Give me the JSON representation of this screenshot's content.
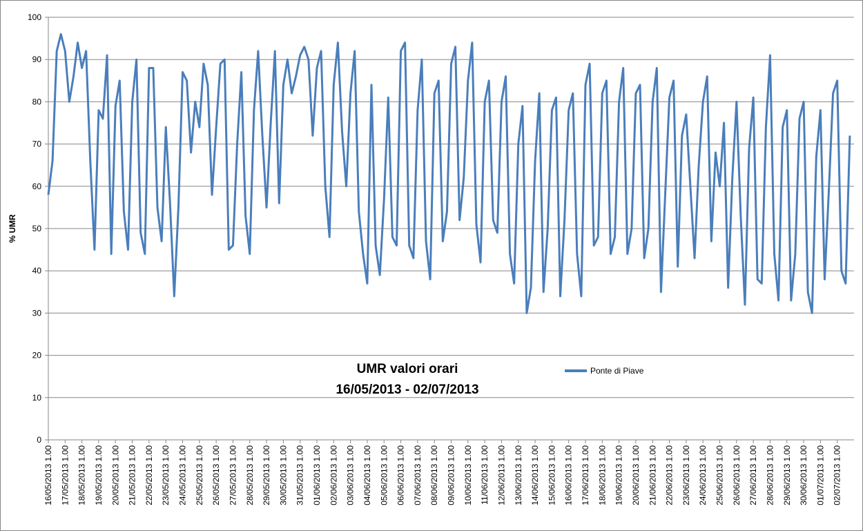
{
  "chart_data": {
    "type": "line",
    "title": "UMR valori orari",
    "subtitle": "16/05/2013 - 02/07/2013",
    "y_label": "% UMR",
    "categories": [
      "16/05/2013 1.00",
      null,
      null,
      null,
      "17/05/2013 1.00",
      null,
      null,
      null,
      "18/05/2013 1.00",
      null,
      null,
      null,
      "19/05/2013 1.00",
      null,
      null,
      null,
      "20/05/2013 1.00",
      null,
      null,
      null,
      "21/05/2013 1.00",
      null,
      null,
      null,
      "22/05/2013 1.00",
      null,
      null,
      null,
      "23/05/2013 1.00",
      null,
      null,
      null,
      "24/05/2013 1.00",
      null,
      null,
      null,
      "25/05/2013 1.00",
      null,
      null,
      null,
      "26/05/2013 1.00",
      null,
      null,
      null,
      "27/05/2013 1.00",
      null,
      null,
      null,
      "28/05/2013 1.00",
      null,
      null,
      null,
      "29/05/2013 1.00",
      null,
      null,
      null,
      "30/05/2013 1.00",
      null,
      null,
      null,
      "31/05/2013 1.00",
      null,
      null,
      null,
      "01/06/2013 1.00",
      null,
      null,
      null,
      "02/06/2013 1.00",
      null,
      null,
      null,
      "03/06/2013 1.00",
      null,
      null,
      null,
      "04/06/2013 1.00",
      null,
      null,
      null,
      "05/06/2013 1.00",
      null,
      null,
      null,
      "06/06/2013 1.00",
      null,
      null,
      null,
      "07/06/2013 1.00",
      null,
      null,
      null,
      "08/06/2013 1.00",
      null,
      null,
      null,
      "09/06/2013 1.00",
      null,
      null,
      null,
      "10/06/2013 1.00",
      null,
      null,
      null,
      "11/06/2013 1.00",
      null,
      null,
      null,
      "12/06/2013 1.00",
      null,
      null,
      null,
      "13/06/2013 1.00",
      null,
      null,
      null,
      "14/06/2013 1.00",
      null,
      null,
      null,
      "15/06/2013 1.00",
      null,
      null,
      null,
      "16/06/2013 1.00",
      null,
      null,
      null,
      "17/06/2013 1.00",
      null,
      null,
      null,
      "18/06/2013 1.00",
      null,
      null,
      null,
      "19/06/2013 1.00",
      null,
      null,
      null,
      "20/06/2013 1.00",
      null,
      null,
      null,
      "21/06/2013 1.00",
      null,
      null,
      null,
      "22/06/2013 1.00",
      null,
      null,
      null,
      "23/06/2013 1.00",
      null,
      null,
      null,
      "24/06/2013 1.00",
      null,
      null,
      null,
      "25/06/2013 1.00",
      null,
      null,
      null,
      "26/06/2013 1.00",
      null,
      null,
      null,
      "27/06/2013 1.00",
      null,
      null,
      null,
      "28/06/2013 1.00",
      null,
      null,
      null,
      "29/06/2013 1.00",
      null,
      null,
      null,
      "30/06/2013 1.00",
      null,
      null,
      null,
      "01/07/2013 1.00",
      null,
      null,
      null,
      "02/07/2013 1.00",
      null,
      null,
      null
    ],
    "series": [
      {
        "name": "Ponte di Piave",
        "color": "#4a7ebb",
        "values": [
          58,
          66,
          92,
          96,
          92,
          80,
          86,
          94,
          88,
          92,
          66,
          45,
          78,
          76,
          91,
          44,
          79,
          85,
          54,
          45,
          80,
          90,
          49,
          44,
          88,
          88,
          55,
          47,
          74,
          56,
          34,
          55,
          87,
          85,
          68,
          80,
          74,
          89,
          84,
          58,
          74,
          89,
          90,
          45,
          46,
          70,
          87,
          53,
          44,
          78,
          92,
          72,
          55,
          75,
          92,
          56,
          84,
          90,
          82,
          86,
          91,
          93,
          90,
          72,
          88,
          92,
          60,
          48,
          84,
          94,
          73,
          60,
          82,
          92,
          54,
          44,
          37,
          84,
          46,
          39,
          57,
          81,
          48,
          46,
          92,
          94,
          46,
          43,
          78,
          90,
          47,
          38,
          82,
          85,
          47,
          54,
          89,
          93,
          52,
          62,
          85,
          94,
          51,
          42,
          80,
          85,
          52,
          49,
          80,
          86,
          44,
          37,
          70,
          79,
          30,
          36,
          66,
          82,
          35,
          50,
          78,
          81,
          34,
          52,
          78,
          82,
          44,
          34,
          84,
          89,
          46,
          48,
          82,
          85,
          44,
          48,
          80,
          88,
          44,
          50,
          82,
          84,
          43,
          50,
          80,
          88,
          35,
          58,
          81,
          85,
          41,
          72,
          77,
          60,
          43,
          65,
          80,
          86,
          47,
          68,
          60,
          75,
          36,
          62,
          80,
          53,
          32,
          69,
          81,
          38,
          37,
          74,
          91,
          44,
          33,
          74,
          78,
          33,
          44,
          76,
          80,
          35,
          30,
          67,
          78,
          38,
          59,
          82,
          85,
          40,
          37,
          72
        ]
      }
    ],
    "ylim": [
      0,
      100
    ],
    "yticks": [
      0,
      10,
      20,
      30,
      40,
      50,
      60,
      70,
      80,
      90,
      100
    ],
    "grid": true
  }
}
